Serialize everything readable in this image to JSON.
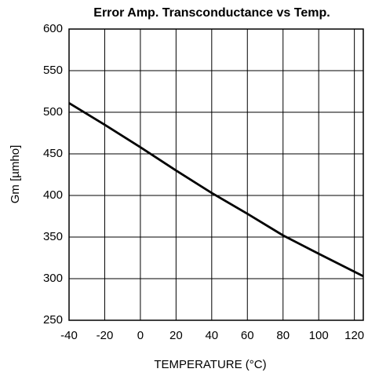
{
  "chart_data": {
    "type": "line",
    "title": "Error Amp. Transconductance vs Temp.",
    "x_label": "TEMPERATURE (°C)",
    "y_label": "Gm [µmho]",
    "x": [
      -40,
      -20,
      0,
      20,
      40,
      60,
      80,
      100,
      125
    ],
    "series": [
      {
        "name": "Gm",
        "color": "#000000",
        "values": [
          511,
          485,
          458,
          430,
          403,
          378,
          352,
          330,
          303
        ]
      }
    ],
    "xlim": [
      -40,
      125
    ],
    "xticks": [
      -40,
      -20,
      0,
      20,
      40,
      60,
      80,
      100,
      120
    ],
    "ylim": [
      250,
      600
    ],
    "yticks": [
      250,
      300,
      350,
      400,
      450,
      500,
      550,
      600
    ],
    "grid": true
  }
}
